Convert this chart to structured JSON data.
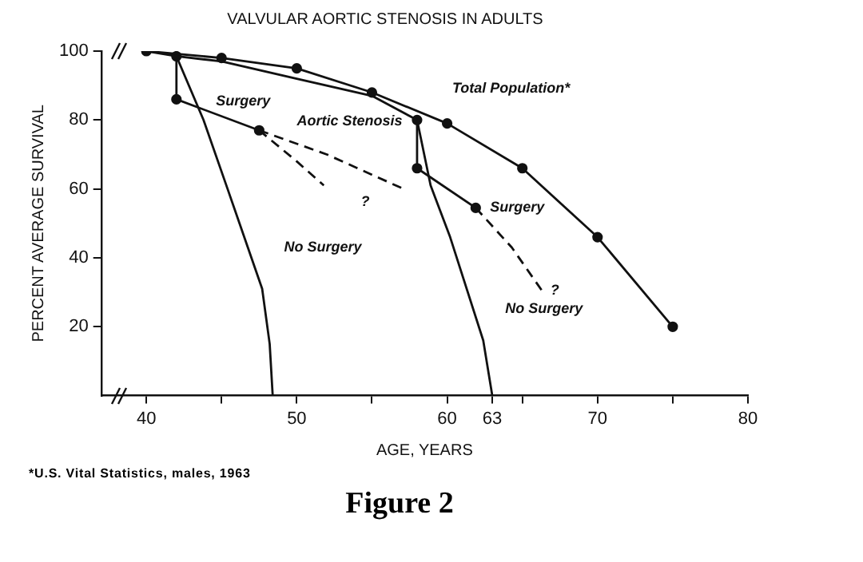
{
  "chart_data": {
    "type": "line",
    "title": "VALVULAR AORTIC STENOSIS IN ADULTS",
    "xlabel": "AGE, YEARS",
    "ylabel": "PERCENT AVERAGE SURVIVAL",
    "xlim": [
      37,
      80
    ],
    "xticks": [
      40,
      {
        "value": 45,
        "label": null
      },
      50,
      {
        "value": 55,
        "label": null
      },
      60,
      63,
      {
        "value": 65,
        "label": null
      },
      70,
      {
        "value": 75,
        "label": null
      },
      80
    ],
    "ylim": [
      0,
      100
    ],
    "yticks": [
      20,
      40,
      60,
      80,
      100
    ],
    "grid": false,
    "legend": false,
    "series": [
      {
        "name": "Total Population*",
        "color": "#111111",
        "marker": "circle",
        "x": [
          40,
          45,
          50,
          55,
          60,
          65,
          70,
          75
        ],
        "values": [
          100,
          98,
          95,
          88,
          79,
          66,
          46,
          20
        ]
      },
      {
        "name": "Aortic Stenosis",
        "color": "#111111",
        "marker": "none",
        "x": [
          40,
          42,
          45,
          50,
          55,
          58
        ],
        "values": [
          100,
          98.5,
          97,
          92,
          87,
          80
        ]
      },
      {
        "name": "Surgery",
        "color": "#111111",
        "marker": "circle",
        "x": [
          42,
          42,
          47.5
        ],
        "values": [
          98.5,
          86,
          77
        ]
      },
      {
        "color": "#111111",
        "marker": "none",
        "line_style": "dashed",
        "x": [
          47.5,
          50,
          51.8
        ],
        "values": [
          77,
          68,
          61
        ]
      },
      {
        "color": "#111111",
        "marker": "none",
        "line_style": "dashed",
        "x": [
          47.5,
          52,
          57.1
        ],
        "values": [
          77,
          70,
          60
        ]
      },
      {
        "name": "No Surgery",
        "color": "#111111",
        "marker": "none",
        "x": [
          42,
          43.8,
          45.4,
          47.7,
          48.2,
          48.4
        ],
        "values": [
          98.5,
          80,
          60,
          31,
          15,
          0
        ]
      },
      {
        "name": "Surgery",
        "color": "#111111",
        "marker": "circle",
        "x": [
          58,
          58,
          61.9
        ],
        "values": [
          80,
          66,
          54.5
        ]
      },
      {
        "color": "#111111",
        "marker": "none",
        "line_style": "dashed",
        "x": [
          61.9,
          64.3,
          66.3
        ],
        "values": [
          54.5,
          43,
          30.5
        ]
      },
      {
        "name": "No Surgery",
        "color": "#111111",
        "marker": "none",
        "x": [
          58,
          58.9,
          60.2,
          62.4,
          63
        ],
        "values": [
          80,
          61,
          46,
          16,
          0
        ]
      }
    ],
    "annotations": [
      {
        "text": "?",
        "x": 57.1,
        "y": 60
      },
      {
        "text": "?",
        "x": 66.3,
        "y": 30.5
      },
      "*U.S. Vital Statistics, males, 1963",
      "Figure 2"
    ]
  }
}
